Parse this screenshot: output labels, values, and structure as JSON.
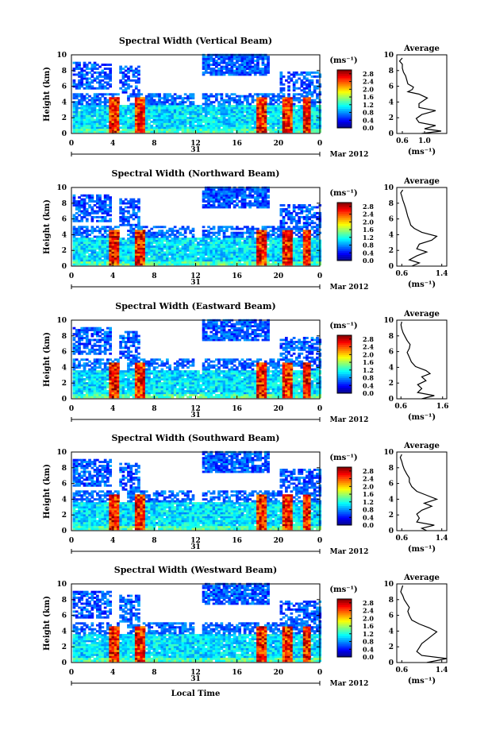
{
  "chart_data": [
    {
      "type": "heatmap",
      "title": "Spectral Width (Vertical Beam)",
      "ylabel": "Height (km)",
      "ylim": [
        0,
        10
      ],
      "yticks": [
        "0",
        "2",
        "4",
        "6",
        "8",
        "10"
      ],
      "xlim": [
        0,
        24
      ],
      "xticks": [
        "0",
        "4",
        "8",
        "12",
        "16",
        "20",
        "0"
      ],
      "date_day": "31",
      "date_label": "Mar 2012",
      "colorbar": {
        "unit": "(ms⁻¹)",
        "ticks": [
          "0.0",
          "0.4",
          "0.8",
          "1.2",
          "1.6",
          "2.0",
          "2.4",
          "2.8"
        ],
        "range": [
          0,
          3.0
        ]
      },
      "profile": {
        "title": "Average",
        "xlabel": "(ms⁻¹)",
        "xticks": [
          "0.6",
          "1.0"
        ],
        "xlim": [
          0.5,
          1.4
        ],
        "ylim": [
          0,
          10
        ],
        "points": [
          [
            0.95,
            0.0
          ],
          [
            1.3,
            0.3
          ],
          [
            1.0,
            0.6
          ],
          [
            1.2,
            1.0
          ],
          [
            0.9,
            1.4
          ],
          [
            0.85,
            1.9
          ],
          [
            0.95,
            2.4
          ],
          [
            1.2,
            2.9
          ],
          [
            0.9,
            3.3
          ],
          [
            0.9,
            3.8
          ],
          [
            1.05,
            4.5
          ],
          [
            0.9,
            5.0
          ],
          [
            0.7,
            5.3
          ],
          [
            0.78,
            5.6
          ],
          [
            0.8,
            5.9
          ],
          [
            0.7,
            6.3
          ],
          [
            0.68,
            6.8
          ],
          [
            0.66,
            7.3
          ],
          [
            0.62,
            7.8
          ],
          [
            0.6,
            8.3
          ],
          [
            0.6,
            8.8
          ],
          [
            0.55,
            9.2
          ],
          [
            0.6,
            9.6
          ]
        ]
      }
    },
    {
      "type": "heatmap",
      "title": "Spectral Width (Northward Beam)",
      "ylabel": "Height (km)",
      "ylim": [
        0,
        10
      ],
      "yticks": [
        "0",
        "2",
        "4",
        "6",
        "8",
        "10"
      ],
      "xlim": [
        0,
        24
      ],
      "xticks": [
        "0",
        "4",
        "8",
        "12",
        "16",
        "20",
        "0"
      ],
      "date_day": "31",
      "date_label": "Mar 2012",
      "colorbar": {
        "unit": "(ms⁻¹)",
        "ticks": [
          "0.0",
          "0.4",
          "0.8",
          "1.2",
          "1.6",
          "2.0",
          "2.4",
          "2.8"
        ],
        "range": [
          0,
          3.0
        ]
      },
      "profile": {
        "title": "Average",
        "xlabel": "(ms⁻¹)",
        "xticks": [
          "0.6",
          "1.4"
        ],
        "xlim": [
          0.5,
          1.5
        ],
        "ylim": [
          0,
          10
        ],
        "points": [
          [
            0.8,
            0.0
          ],
          [
            0.95,
            0.4
          ],
          [
            0.75,
            0.8
          ],
          [
            0.9,
            1.3
          ],
          [
            1.1,
            1.8
          ],
          [
            0.9,
            2.2
          ],
          [
            0.95,
            2.8
          ],
          [
            1.2,
            3.3
          ],
          [
            1.3,
            3.8
          ],
          [
            1.0,
            4.3
          ],
          [
            0.85,
            4.8
          ],
          [
            0.78,
            5.2
          ],
          [
            0.75,
            5.8
          ],
          [
            0.72,
            6.3
          ],
          [
            0.7,
            6.8
          ],
          [
            0.68,
            7.3
          ],
          [
            0.65,
            7.9
          ],
          [
            0.62,
            8.4
          ],
          [
            0.6,
            8.9
          ],
          [
            0.58,
            9.3
          ],
          [
            0.62,
            9.7
          ]
        ]
      }
    },
    {
      "type": "heatmap",
      "title": "Spectral Width (Eastward Beam)",
      "ylabel": "Height (km)",
      "ylim": [
        0,
        10
      ],
      "yticks": [
        "0",
        "2",
        "4",
        "6",
        "8",
        "10"
      ],
      "xlim": [
        0,
        24
      ],
      "xticks": [
        "0",
        "4",
        "8",
        "12",
        "16",
        "20",
        "0"
      ],
      "date_day": "31",
      "date_label": "Mar 2012",
      "colorbar": {
        "unit": "(ms⁻¹)",
        "ticks": [
          "0.0",
          "0.4",
          "0.8",
          "1.2",
          "1.6",
          "2.0",
          "2.4",
          "2.8"
        ],
        "range": [
          0,
          3.0
        ]
      },
      "profile": {
        "title": "Average",
        "xlabel": "(ms⁻¹)",
        "xticks": [
          "0.6",
          "1.6"
        ],
        "xlim": [
          0.5,
          1.7
        ],
        "ylim": [
          0,
          10
        ],
        "points": [
          [
            1.1,
            0.0
          ],
          [
            1.4,
            0.4
          ],
          [
            1.0,
            0.8
          ],
          [
            1.1,
            1.3
          ],
          [
            1.0,
            1.8
          ],
          [
            1.2,
            2.3
          ],
          [
            1.1,
            2.8
          ],
          [
            1.3,
            3.2
          ],
          [
            1.2,
            3.6
          ],
          [
            0.95,
            4.1
          ],
          [
            0.85,
            4.7
          ],
          [
            0.8,
            5.3
          ],
          [
            0.75,
            5.9
          ],
          [
            0.8,
            6.4
          ],
          [
            0.82,
            6.9
          ],
          [
            0.75,
            7.4
          ],
          [
            0.7,
            7.9
          ],
          [
            0.65,
            8.4
          ],
          [
            0.62,
            8.9
          ],
          [
            0.6,
            9.4
          ],
          [
            0.62,
            9.8
          ]
        ]
      }
    },
    {
      "type": "heatmap",
      "title": "Spectral Width (Southward Beam)",
      "ylabel": "Height (km)",
      "ylim": [
        0,
        10
      ],
      "yticks": [
        "0",
        "2",
        "4",
        "6",
        "8",
        "10"
      ],
      "xlim": [
        0,
        24
      ],
      "xticks": [
        "0",
        "4",
        "8",
        "12",
        "16",
        "20",
        "0"
      ],
      "date_day": "31",
      "date_label": "Mar 2012",
      "colorbar": {
        "unit": "(ms⁻¹)",
        "ticks": [
          "0.0",
          "0.4",
          "0.8",
          "1.2",
          "1.6",
          "2.0",
          "2.4",
          "2.8"
        ],
        "range": [
          0,
          3.0
        ]
      },
      "profile": {
        "title": "Average",
        "xlabel": "(ms⁻¹)",
        "xticks": [
          "0.6",
          "1.4"
        ],
        "xlim": [
          0.5,
          1.5
        ],
        "ylim": [
          0,
          10
        ],
        "points": [
          [
            1.1,
            0.0
          ],
          [
            1.0,
            0.3
          ],
          [
            1.25,
            0.7
          ],
          [
            0.9,
            1.1
          ],
          [
            0.95,
            1.6
          ],
          [
            0.9,
            2.1
          ],
          [
            1.0,
            2.6
          ],
          [
            1.2,
            3.1
          ],
          [
            1.05,
            3.5
          ],
          [
            1.3,
            4.0
          ],
          [
            1.1,
            4.5
          ],
          [
            0.9,
            5.0
          ],
          [
            0.8,
            5.6
          ],
          [
            0.75,
            6.2
          ],
          [
            0.75,
            6.7
          ],
          [
            0.7,
            7.2
          ],
          [
            0.65,
            7.8
          ],
          [
            0.62,
            8.3
          ],
          [
            0.6,
            8.8
          ],
          [
            0.57,
            9.3
          ],
          [
            0.6,
            9.7
          ]
        ]
      }
    },
    {
      "type": "heatmap",
      "title": "Spectral Width (Westward Beam)",
      "ylabel": "Height (km)",
      "ylim": [
        0,
        10
      ],
      "yticks": [
        "0",
        "2",
        "4",
        "6",
        "8",
        "10"
      ],
      "xlim": [
        0,
        24
      ],
      "xticks": [
        "0",
        "4",
        "8",
        "12",
        "16",
        "20",
        "0"
      ],
      "date_day": "31",
      "date_label": "Mar 2012",
      "xlabel": "Local Time",
      "colorbar": {
        "unit": "(ms⁻¹)",
        "ticks": [
          "0.0",
          "0.4",
          "0.8",
          "1.2",
          "1.6",
          "2.0",
          "2.4",
          "2.8"
        ],
        "range": [
          0,
          3.0
        ]
      },
      "profile": {
        "title": "Average",
        "xlabel": "(ms⁻¹)",
        "xticks": [
          "0.6",
          "1.4"
        ],
        "xlim": [
          0.5,
          1.5
        ],
        "ylim": [
          0,
          10
        ],
        "points": [
          [
            1.1,
            0.0
          ],
          [
            1.5,
            0.5
          ],
          [
            1.0,
            0.9
          ],
          [
            0.9,
            1.4
          ],
          [
            0.95,
            1.9
          ],
          [
            1.0,
            2.4
          ],
          [
            1.1,
            2.9
          ],
          [
            1.2,
            3.4
          ],
          [
            1.3,
            3.9
          ],
          [
            1.15,
            4.4
          ],
          [
            0.95,
            4.9
          ],
          [
            0.8,
            5.4
          ],
          [
            0.75,
            6.0
          ],
          [
            0.72,
            6.5
          ],
          [
            0.75,
            7.0
          ],
          [
            0.7,
            7.5
          ],
          [
            0.65,
            8.0
          ],
          [
            0.62,
            8.5
          ],
          [
            0.58,
            9.0
          ],
          [
            0.6,
            9.4
          ],
          [
            0.62,
            9.8
          ]
        ]
      }
    }
  ]
}
